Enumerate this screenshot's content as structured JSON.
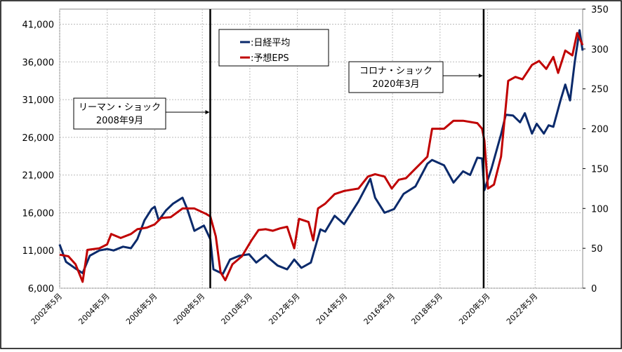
{
  "chart_data": {
    "type": "line",
    "x_label_format": "year-month",
    "xlim": [
      2002.333,
      2024.333
    ],
    "xticks": [
      {
        "value": 2002.333,
        "label": "2002年5月"
      },
      {
        "value": 2004.333,
        "label": "2004年5月"
      },
      {
        "value": 2006.333,
        "label": "2006年5月"
      },
      {
        "value": 2008.333,
        "label": "2008年5月"
      },
      {
        "value": 2010.333,
        "label": "2010年5月"
      },
      {
        "value": 2012.333,
        "label": "2012年5月"
      },
      {
        "value": 2014.333,
        "label": "2014年5月"
      },
      {
        "value": 2016.333,
        "label": "2016年5月"
      },
      {
        "value": 2018.333,
        "label": "2018年5月"
      },
      {
        "value": 2020.333,
        "label": "2020年5月"
      },
      {
        "value": 2022.333,
        "label": "2022年5月"
      }
    ],
    "ylim": [
      6000,
      43000
    ],
    "yticks": [
      {
        "value": 6000,
        "label": "6,000"
      },
      {
        "value": 11000,
        "label": "11,000"
      },
      {
        "value": 16000,
        "label": "16,000"
      },
      {
        "value": 21000,
        "label": "21,000"
      },
      {
        "value": 26000,
        "label": "26,000"
      },
      {
        "value": 31000,
        "label": "31,000"
      },
      {
        "value": 36000,
        "label": "36,000"
      },
      {
        "value": 41000,
        "label": "41,000"
      }
    ],
    "y2lim": [
      0,
      350
    ],
    "y2ticks": [
      0,
      50,
      100,
      150,
      200,
      250,
      300,
      350
    ],
    "grid": true,
    "series": [
      {
        "name": ":日経平均",
        "color": "#0b2a6b",
        "x": [
          2002.33,
          2002.6,
          2003.0,
          2003.3,
          2003.6,
          2004.0,
          2004.33,
          2004.6,
          2005.0,
          2005.33,
          2005.6,
          2005.9,
          2006.2,
          2006.33,
          2006.5,
          2006.8,
          2007.1,
          2007.5,
          2007.7,
          2008.0,
          2008.4,
          2008.67,
          2008.8,
          2009.2,
          2009.5,
          2009.9,
          2010.3,
          2010.6,
          2011.0,
          2011.2,
          2011.5,
          2011.9,
          2012.2,
          2012.5,
          2012.9,
          2013.3,
          2013.5,
          2013.9,
          2014.3,
          2014.9,
          2015.4,
          2015.6,
          2016.0,
          2016.4,
          2016.8,
          2017.3,
          2017.8,
          2018.0,
          2018.5,
          2018.9,
          2019.3,
          2019.6,
          2019.9,
          2020.1,
          2020.2,
          2020.5,
          2020.9,
          2021.1,
          2021.4,
          2021.7,
          2021.9,
          2022.2,
          2022.4,
          2022.7,
          2022.9,
          2023.1,
          2023.4,
          2023.6,
          2023.8,
          2024.0,
          2024.2,
          2024.33
        ],
        "values": [
          11800,
          9500,
          8600,
          8000,
          10300,
          11000,
          11200,
          11000,
          11500,
          11300,
          12500,
          15000,
          16500,
          16800,
          15000,
          16300,
          17200,
          18000,
          16500,
          13600,
          14300,
          12500,
          8500,
          7900,
          9800,
          10300,
          10500,
          9400,
          10400,
          9800,
          9000,
          8500,
          9800,
          8700,
          9400,
          13800,
          13500,
          15600,
          14500,
          17500,
          20500,
          18000,
          16000,
          16500,
          18500,
          19500,
          22500,
          23000,
          22300,
          20000,
          21500,
          21000,
          23300,
          23200,
          19000,
          21900,
          26400,
          29000,
          28900,
          28000,
          29200,
          26500,
          27800,
          26500,
          27600,
          27400,
          30900,
          33000,
          30900,
          36000,
          40200,
          37500
        ]
      },
      {
        "name": ":予想EPS",
        "color": "#c00000",
        "axis": "y2",
        "x": [
          2002.33,
          2002.7,
          2003.0,
          2003.3,
          2003.5,
          2004.0,
          2004.33,
          2004.5,
          2004.9,
          2005.33,
          2005.6,
          2006.0,
          2006.33,
          2006.6,
          2007.0,
          2007.5,
          2008.0,
          2008.5,
          2008.67,
          2008.9,
          2009.1,
          2009.3,
          2009.6,
          2010.0,
          2010.4,
          2010.7,
          2011.0,
          2011.3,
          2011.6,
          2011.9,
          2012.2,
          2012.4,
          2012.8,
          2013.0,
          2013.2,
          2013.5,
          2013.9,
          2014.3,
          2014.9,
          2015.3,
          2015.6,
          2016.0,
          2016.3,
          2016.6,
          2016.9,
          2017.3,
          2017.8,
          2018.0,
          2018.5,
          2018.9,
          2019.3,
          2019.9,
          2020.1,
          2020.2,
          2020.35,
          2020.6,
          2020.9,
          2021.2,
          2021.5,
          2021.8,
          2022.2,
          2022.5,
          2022.8,
          2023.1,
          2023.3,
          2023.6,
          2023.9,
          2024.1,
          2024.33
        ],
        "values": [
          42,
          40,
          30,
          8,
          48,
          50,
          55,
          68,
          63,
          68,
          74,
          76,
          80,
          88,
          89,
          100,
          100,
          93,
          90,
          65,
          20,
          10,
          30,
          40,
          60,
          73,
          74,
          72,
          75,
          77,
          50,
          87,
          83,
          60,
          100,
          106,
          118,
          122,
          125,
          140,
          143,
          140,
          125,
          136,
          138,
          150,
          165,
          200,
          200,
          210,
          210,
          207,
          200,
          185,
          125,
          130,
          165,
          260,
          265,
          262,
          280,
          285,
          275,
          290,
          270,
          298,
          292,
          320,
          305
        ]
      }
    ],
    "events": [
      {
        "x": 2008.667,
        "label": [
          "リーマン・ショック",
          "2008年9月"
        ]
      },
      {
        "x": 2020.167,
        "label": [
          "コロナ・ショック",
          "2020年3月"
        ]
      }
    ]
  }
}
